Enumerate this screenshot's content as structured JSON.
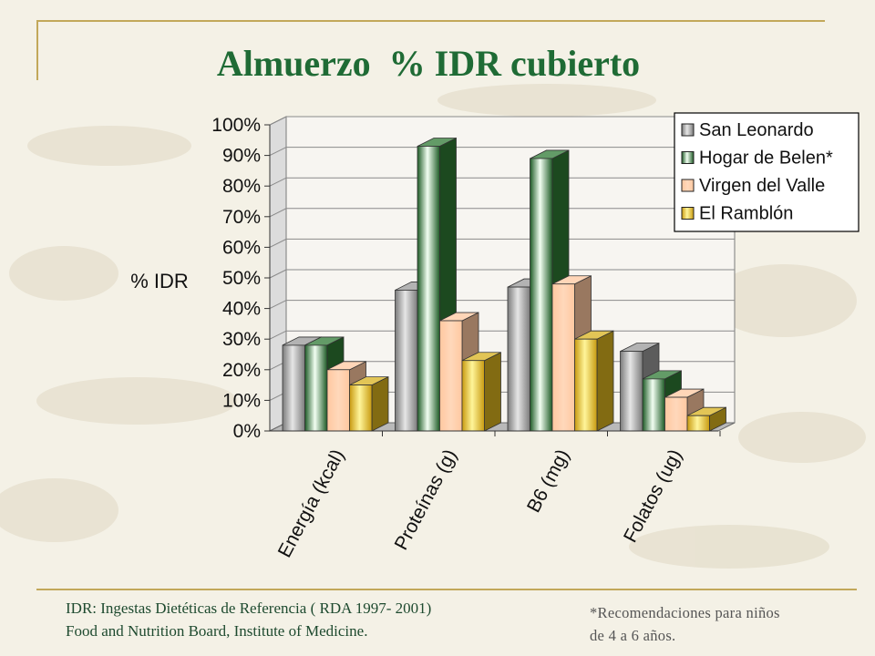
{
  "slide": {
    "title": "Almuerzo  % IDR cubierto",
    "source_line1": "IDR: Ingestas Dietéticas de Referencia ( RDA 1997- 2001)",
    "source_line2": "Food and Nutrition Board, Institute of  Medicine.",
    "note_line1": "*Recomendaciones para niños",
    "note_line2": "de 4 a 6 años.",
    "title_color": "#1f6b35"
  },
  "chart_data": {
    "type": "bar",
    "style": "3d-clustered-column",
    "ylabel": "% IDR",
    "xlabel": "",
    "ylim": [
      0,
      100
    ],
    "yticks": [
      "0%",
      "10%",
      "20%",
      "30%",
      "40%",
      "50%",
      "60%",
      "70%",
      "80%",
      "90%",
      "100%"
    ],
    "grid": true,
    "legend_position": "top-right",
    "categories": [
      "Energía (kcal)",
      "Proteínas (g)",
      "B6 (mg)",
      "Folatos (ug)"
    ],
    "series": [
      {
        "name": "San Leonardo",
        "values": [
          28,
          46,
          47,
          26
        ],
        "color": "#9a9a9a"
      },
      {
        "name": "Hogar de Belen*",
        "values": [
          28,
          93,
          89,
          17
        ],
        "color": "#2f7a34"
      },
      {
        "name": "Virgen del Valle",
        "values": [
          20,
          36,
          48,
          11
        ],
        "color": "#ffc8a0"
      },
      {
        "name": "El Ramblón",
        "values": [
          15,
          23,
          30,
          5
        ],
        "color": "#d8b21e"
      }
    ]
  }
}
